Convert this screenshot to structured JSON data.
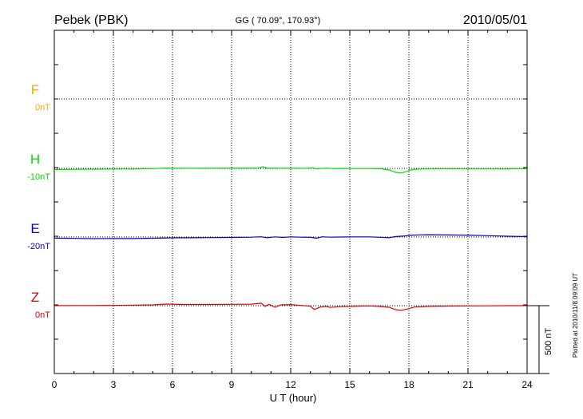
{
  "header": {
    "station": "Pebek (PBK)",
    "coords": "GG ( 70.09°, 170.93°)",
    "date": "2010/05/01"
  },
  "footer": {
    "plotted": "Plotted at 2010/11/8 09:09 UT",
    "scale_label": "500 nT"
  },
  "chart_data": {
    "type": "line",
    "title": "Pebek (PBK)",
    "xlabel": "U T (hour)",
    "xlim": [
      0,
      24
    ],
    "xticks": [
      0,
      3,
      6,
      9,
      12,
      15,
      18,
      21,
      24
    ],
    "grid": true,
    "scale_bar_nT": 500,
    "series": [
      {
        "name": "F",
        "baseline_label": "0nT",
        "color": "#f5a800",
        "points": []
      },
      {
        "name": "H",
        "baseline_label": "-10nT",
        "color": "#00dd00",
        "points": [
          [
            0,
            -8
          ],
          [
            0.5,
            -8
          ],
          [
            1,
            -7
          ],
          [
            2,
            -6
          ],
          [
            3,
            -5
          ],
          [
            4,
            -5
          ],
          [
            5,
            -2
          ],
          [
            5.7,
            3
          ],
          [
            6.2,
            2
          ],
          [
            7,
            1
          ],
          [
            8,
            2
          ],
          [
            9,
            3
          ],
          [
            10,
            3
          ],
          [
            10.4,
            4
          ],
          [
            10.6,
            12
          ],
          [
            10.8,
            3
          ],
          [
            11.5,
            2
          ],
          [
            12,
            2
          ],
          [
            12.8,
            1
          ],
          [
            13.1,
            5
          ],
          [
            13.3,
            -3
          ],
          [
            13.8,
            2
          ],
          [
            14.2,
            -2
          ],
          [
            14.6,
            0
          ],
          [
            15,
            -1
          ],
          [
            16,
            -1
          ],
          [
            16.6,
            -3
          ],
          [
            17,
            -12
          ],
          [
            17.3,
            -28
          ],
          [
            17.6,
            -35
          ],
          [
            17.9,
            -22
          ],
          [
            18.2,
            -8
          ],
          [
            18.6,
            -5
          ],
          [
            19,
            -4
          ],
          [
            20,
            -3
          ],
          [
            21,
            -4
          ],
          [
            22,
            -4
          ],
          [
            23,
            -5
          ],
          [
            23.5,
            -2
          ],
          [
            24,
            -3
          ]
        ]
      },
      {
        "name": "E",
        "baseline_label": "-20nT",
        "color": "#0000cc",
        "points": [
          [
            0,
            -8
          ],
          [
            1,
            -10
          ],
          [
            2,
            -12
          ],
          [
            3,
            -11
          ],
          [
            4,
            -11
          ],
          [
            5,
            -9
          ],
          [
            6,
            -6
          ],
          [
            7,
            -5
          ],
          [
            8,
            -4
          ],
          [
            9,
            -3
          ],
          [
            10,
            -1
          ],
          [
            10.5,
            2
          ],
          [
            10.8,
            -5
          ],
          [
            11.2,
            1
          ],
          [
            11.6,
            -3
          ],
          [
            12,
            1
          ],
          [
            12.5,
            -1
          ],
          [
            13,
            -2
          ],
          [
            13.3,
            -9
          ],
          [
            13.6,
            2
          ],
          [
            14,
            -1
          ],
          [
            14.5,
            0
          ],
          [
            15,
            1
          ],
          [
            16,
            1
          ],
          [
            16.5,
            -2
          ],
          [
            17,
            -5
          ],
          [
            17.3,
            3
          ],
          [
            17.8,
            8
          ],
          [
            18.2,
            14
          ],
          [
            18.5,
            16
          ],
          [
            19,
            17
          ],
          [
            20,
            15
          ],
          [
            21,
            14
          ],
          [
            22,
            10
          ],
          [
            23,
            6
          ],
          [
            24,
            3
          ]
        ]
      },
      {
        "name": "Z",
        "baseline_label": "0nT",
        "color": "#dd0000",
        "points": [
          [
            0,
            0
          ],
          [
            1,
            1
          ],
          [
            2,
            1
          ],
          [
            3,
            2
          ],
          [
            4,
            4
          ],
          [
            5,
            6
          ],
          [
            5.7,
            12
          ],
          [
            6.5,
            9
          ],
          [
            7,
            9
          ],
          [
            8,
            9
          ],
          [
            9,
            10
          ],
          [
            10,
            11
          ],
          [
            10.5,
            18
          ],
          [
            10.7,
            -5
          ],
          [
            10.9,
            10
          ],
          [
            11.2,
            -12
          ],
          [
            11.5,
            6
          ],
          [
            12,
            8
          ],
          [
            12.5,
            2
          ],
          [
            13,
            -4
          ],
          [
            13.2,
            -28
          ],
          [
            13.5,
            -10
          ],
          [
            13.8,
            -5
          ],
          [
            14,
            -13
          ],
          [
            14.5,
            -7
          ],
          [
            15,
            -5
          ],
          [
            16,
            -2
          ],
          [
            16.5,
            -5
          ],
          [
            17,
            -12
          ],
          [
            17.3,
            -28
          ],
          [
            17.6,
            -35
          ],
          [
            17.9,
            -25
          ],
          [
            18.3,
            -10
          ],
          [
            19,
            -5
          ],
          [
            20,
            -3
          ],
          [
            21,
            -2
          ],
          [
            22,
            -1
          ],
          [
            23,
            0
          ],
          [
            24,
            0
          ]
        ]
      }
    ]
  }
}
